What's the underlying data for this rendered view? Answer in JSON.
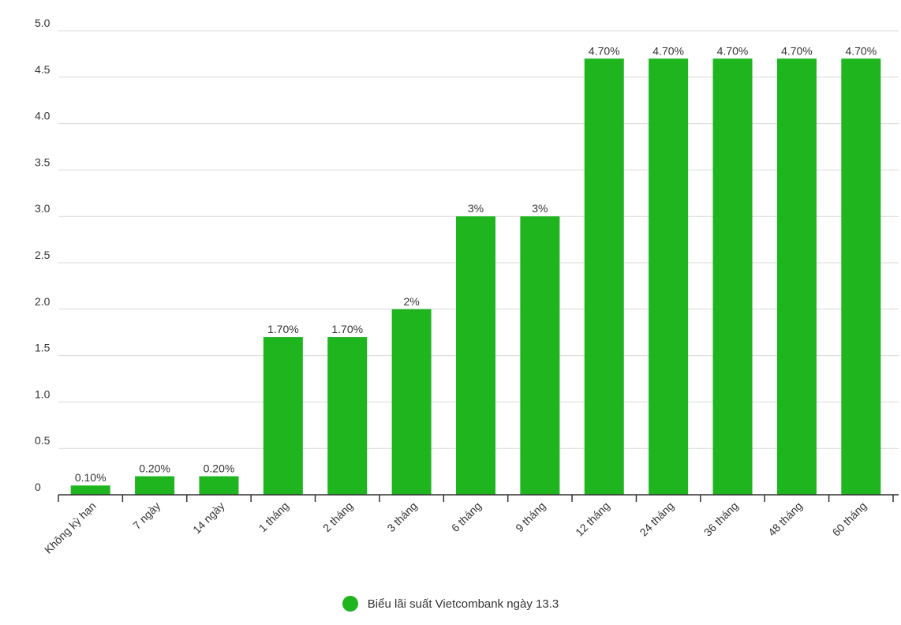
{
  "colors": {
    "bar": "#1fb51f",
    "grid": "#d9d9d9",
    "axis": "#333333",
    "text": "#333333"
  },
  "chart_data": {
    "type": "bar",
    "categories": [
      "Không kỳ hạn",
      "7 ngày",
      "14 ngày",
      "1 tháng",
      "2 tháng",
      "3 tháng",
      "6 tháng",
      "9 tháng",
      "12 tháng",
      "24 tháng",
      "36 tháng",
      "48 tháng",
      "60 tháng"
    ],
    "series": [
      {
        "name": "Biểu lãi suất Vietcombank ngày 13.3",
        "values": [
          0.1,
          0.2,
          0.2,
          1.7,
          1.7,
          2,
          3,
          3,
          4.7,
          4.7,
          4.7,
          4.7,
          4.7
        ],
        "data_labels": [
          "0.10%",
          "0.20%",
          "0.20%",
          "1.70%",
          "1.70%",
          "2%",
          "3%",
          "3%",
          "4.70%",
          "4.70%",
          "4.70%",
          "4.70%",
          "4.70%"
        ]
      }
    ],
    "ylim": [
      0,
      5
    ],
    "yticks": [
      "0",
      "0.5",
      "1.0",
      "1.5",
      "2.0",
      "2.5",
      "3.0",
      "3.5",
      "4.0",
      "4.5",
      "5.0"
    ],
    "grid": true,
    "legend_position": "bottom-center"
  }
}
